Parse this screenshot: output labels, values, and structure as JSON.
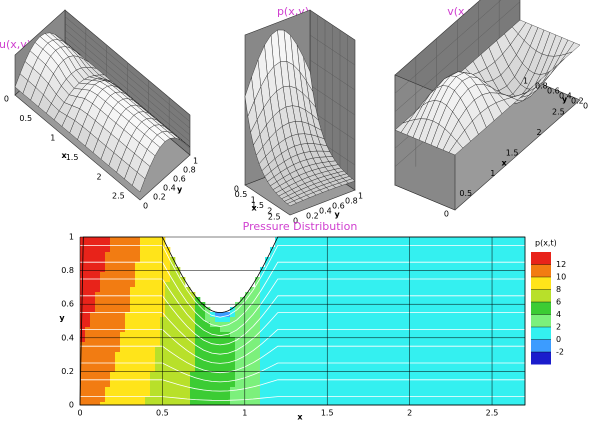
{
  "chart_data": [
    {
      "type": "surface",
      "title": "u(x,y)",
      "xlabel": "x",
      "ylabel": "y",
      "xticks": [
        0,
        0.5,
        1,
        1.5,
        2,
        2.5
      ],
      "yticks": [
        0,
        0.2,
        0.4,
        0.6,
        0.8,
        1
      ]
    },
    {
      "type": "surface",
      "title": "p(x,y)",
      "xlabel": "x",
      "ylabel": "y",
      "xticks": [
        0,
        0.5,
        1,
        1.5,
        2,
        2.5
      ],
      "yticks": [
        0,
        0.2,
        0.4,
        0.6,
        0.8,
        1
      ]
    },
    {
      "type": "surface",
      "title": "v(x,y)",
      "xlabel": "x",
      "ylabel": "y",
      "xticks": [
        0,
        0.5,
        1,
        1.5,
        2,
        2.5
      ],
      "yticks": [
        0,
        0.2,
        0.4,
        0.6,
        0.8,
        1
      ]
    },
    {
      "type": "contour",
      "title": "Pressure Distribution",
      "xlabel": "x",
      "ylabel": "y",
      "xlim": [
        0,
        2.7
      ],
      "ylim": [
        0,
        1
      ],
      "xticks": [
        0,
        0.5,
        1,
        1.5,
        2,
        2.5
      ],
      "yticks": [
        0,
        0.2,
        0.4,
        0.6,
        0.8,
        1
      ],
      "colorbar_title": "p(x,t)",
      "levels": [
        12,
        10,
        8,
        6,
        4,
        2,
        0,
        -2
      ],
      "colors": [
        "#e8231a",
        "#f27c12",
        "#ffe41a",
        "#b8e02a",
        "#3ccc34",
        "#7cf07c",
        "#34f0f0",
        "#3c9cff",
        "#1a1ccc"
      ]
    }
  ]
}
